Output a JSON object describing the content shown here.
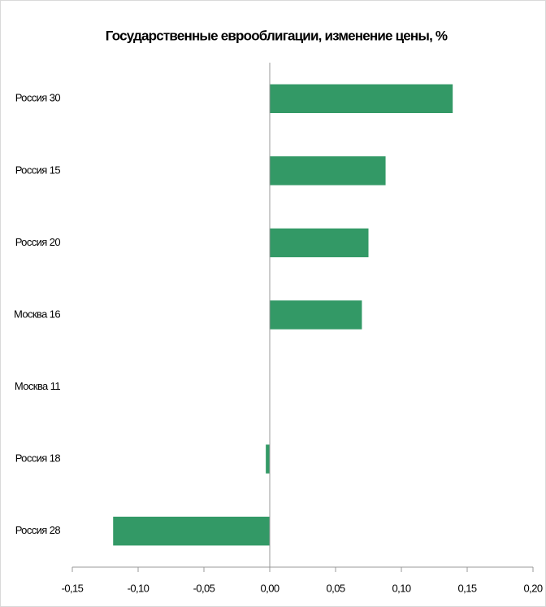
{
  "chart_data": {
    "type": "hbar",
    "title": "Государственные еврооблигации, изменение цены, %",
    "categories": [
      "Россия 30",
      "Россия 15",
      "Россия 20",
      "Москва 16",
      "Москва 11",
      "Россия 18",
      "Россия 28"
    ],
    "values": [
      0.139,
      0.088,
      0.075,
      0.07,
      0,
      -0.003,
      -0.119
    ],
    "color": "#339966",
    "xlim": [
      -0.15,
      0.2
    ],
    "xticks": [
      {
        "value": -0.15,
        "label": "-0,15"
      },
      {
        "value": -0.1,
        "label": "-0,10"
      },
      {
        "value": -0.05,
        "label": "-0,05"
      },
      {
        "value": 0,
        "label": "0,00"
      },
      {
        "value": 0.05,
        "label": "0,05"
      },
      {
        "value": 0.1,
        "label": "0,10"
      },
      {
        "value": 0.15,
        "label": "0,15"
      },
      {
        "value": 0.2,
        "label": "0,20"
      }
    ],
    "grid": false
  }
}
